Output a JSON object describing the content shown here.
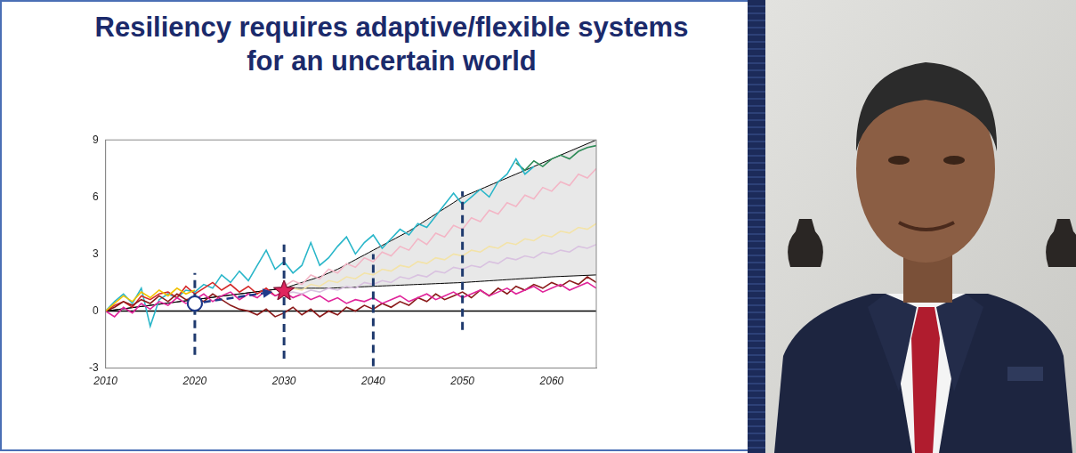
{
  "chart_data": {
    "type": "line",
    "title": "Resiliency requires adaptive/flexible systems for an uncertain world",
    "x": [
      2010,
      2011,
      2012,
      2013,
      2014,
      2015,
      2016,
      2017,
      2018,
      2019,
      2020,
      2021,
      2022,
      2023,
      2024,
      2025,
      2026,
      2027,
      2028,
      2029,
      2030,
      2031,
      2032,
      2033,
      2034,
      2035,
      2036,
      2037,
      2038,
      2039,
      2040,
      2041,
      2042,
      2043,
      2044,
      2045,
      2046,
      2047,
      2048,
      2049,
      2050,
      2051,
      2052,
      2053,
      2054,
      2055,
      2056,
      2057,
      2058,
      2059,
      2060,
      2061,
      2062,
      2063,
      2064,
      2065
    ],
    "xlim": [
      2010,
      2065
    ],
    "xticks": [
      2010,
      2020,
      2030,
      2040,
      2050,
      2060
    ],
    "ylim": [
      -3,
      9
    ],
    "yticks": [
      -3,
      0,
      3,
      6,
      9
    ],
    "grid": false,
    "series": [
      {
        "type": "band",
        "color": "#000000",
        "values": [
          0,
          0.06,
          0.12,
          0.18,
          0.24,
          0.3,
          0.36,
          0.42,
          0.48,
          0.54,
          0.6,
          0.66,
          0.72,
          0.78,
          0.84,
          0.9,
          0.96,
          1.02,
          1.08,
          1.14,
          1.2,
          1.35,
          1.5,
          1.65,
          1.8,
          2.0,
          2.2,
          2.45,
          2.7,
          2.95,
          3.2,
          3.45,
          3.7,
          3.95,
          4.2,
          4.5,
          4.8,
          5.1,
          5.4,
          5.7,
          6.0,
          6.2,
          6.4,
          6.6,
          6.8,
          7.0,
          7.2,
          7.4,
          7.6,
          7.8,
          8.0,
          8.2,
          8.4,
          8.6,
          8.8,
          9.0
        ],
        "lower": [
          0,
          0.06,
          0.12,
          0.18,
          0.24,
          0.3,
          0.36,
          0.42,
          0.48,
          0.54,
          0.6,
          0.66,
          0.72,
          0.78,
          0.84,
          0.9,
          0.96,
          1.02,
          1.08,
          1.14,
          1.2,
          1.2,
          1.2,
          1.2,
          1.2,
          1.2,
          1.22,
          1.24,
          1.26,
          1.28,
          1.3,
          1.32,
          1.34,
          1.36,
          1.38,
          1.4,
          1.42,
          1.44,
          1.46,
          1.48,
          1.5,
          1.53,
          1.56,
          1.59,
          1.62,
          1.65,
          1.68,
          1.71,
          1.74,
          1.77,
          1.8,
          1.82,
          1.84,
          1.86,
          1.88,
          1.9
        ]
      },
      {
        "color": "#f3b6c6",
        "values": [
          null,
          null,
          null,
          null,
          null,
          null,
          null,
          null,
          null,
          null,
          null,
          null,
          null,
          null,
          null,
          null,
          null,
          null,
          null,
          null,
          1.3,
          1.6,
          1.4,
          1.9,
          1.7,
          2.2,
          2.0,
          2.5,
          2.3,
          2.8,
          2.6,
          3.1,
          2.9,
          3.4,
          3.2,
          3.8,
          3.5,
          4.1,
          3.9,
          4.5,
          4.3,
          4.9,
          4.7,
          5.3,
          5.1,
          5.7,
          5.5,
          6.1,
          5.9,
          6.5,
          6.3,
          6.8,
          6.6,
          7.2,
          7.0,
          7.5
        ]
      },
      {
        "color": "#f3e3a8",
        "values": [
          null,
          null,
          null,
          null,
          null,
          null,
          null,
          null,
          null,
          null,
          null,
          null,
          null,
          null,
          null,
          null,
          null,
          null,
          null,
          null,
          1.0,
          1.2,
          1.1,
          1.4,
          1.3,
          1.6,
          1.5,
          1.8,
          1.7,
          2.0,
          1.9,
          2.2,
          2.1,
          2.4,
          2.3,
          2.6,
          2.5,
          2.8,
          2.7,
          3.0,
          2.9,
          3.2,
          3.1,
          3.4,
          3.3,
          3.6,
          3.5,
          3.8,
          3.7,
          4.0,
          3.9,
          4.2,
          4.1,
          4.4,
          4.3,
          4.6
        ]
      },
      {
        "color": "#d9c2e0",
        "values": [
          null,
          null,
          null,
          null,
          null,
          null,
          null,
          null,
          null,
          null,
          null,
          null,
          null,
          null,
          null,
          null,
          null,
          null,
          null,
          null,
          0.9,
          1.0,
          0.9,
          1.1,
          1.0,
          1.2,
          1.1,
          1.3,
          1.2,
          1.5,
          1.4,
          1.6,
          1.5,
          1.8,
          1.7,
          1.9,
          1.8,
          2.1,
          2.0,
          2.3,
          2.2,
          2.4,
          2.3,
          2.6,
          2.5,
          2.8,
          2.7,
          2.9,
          2.8,
          3.1,
          3.0,
          3.2,
          3.1,
          3.4,
          3.3,
          3.5
        ]
      },
      {
        "color": "#f2c200",
        "values": [
          0,
          0.4,
          0.8,
          0.5,
          1.0,
          0.7,
          1.1,
          0.8,
          1.2,
          0.9,
          1.1,
          null,
          null,
          null,
          null,
          null,
          null,
          null,
          null,
          null,
          null,
          null,
          null,
          null,
          null,
          null,
          null,
          null,
          null,
          null,
          null,
          null,
          null,
          null,
          null,
          null,
          null,
          null,
          null,
          null,
          null,
          null,
          null,
          null,
          null,
          null,
          null,
          null,
          null,
          null,
          null,
          null,
          null,
          null,
          null,
          null
        ]
      },
      {
        "color": "#e0249a",
        "values": [
          0,
          -0.3,
          0.2,
          -0.1,
          0.4,
          0.1,
          0.5,
          0.3,
          0.7,
          0.4,
          0.6,
          0.9,
          0.5,
          0.8,
          1.0,
          0.6,
          0.9,
          0.7,
          1.1,
          0.8,
          1.0,
          0.7,
          0.9,
          0.6,
          0.8,
          0.5,
          0.7,
          0.4,
          0.6,
          0.5,
          0.7,
          0.4,
          0.6,
          0.8,
          0.5,
          0.7,
          0.9,
          0.6,
          0.8,
          1.0,
          0.7,
          0.9,
          1.1,
          0.8,
          1.0,
          1.2,
          0.9,
          1.1,
          1.3,
          1.0,
          1.2,
          1.4,
          1.1,
          1.3,
          1.5,
          1.2
        ]
      },
      {
        "color": "#8b1a1a",
        "values": [
          0,
          0.2,
          0.5,
          0.3,
          0.6,
          0.4,
          0.8,
          0.5,
          0.9,
          0.6,
          0.7,
          0.5,
          0.9,
          0.6,
          0.3,
          0.1,
          0.0,
          -0.2,
          0.1,
          -0.3,
          -0.1,
          0.2,
          -0.2,
          0.1,
          -0.3,
          0.0,
          -0.2,
          0.2,
          0.0,
          0.3,
          0.1,
          0.4,
          0.2,
          0.5,
          0.3,
          0.7,
          0.5,
          0.9,
          0.6,
          0.8,
          1.0,
          0.7,
          1.1,
          0.8,
          1.2,
          0.9,
          1.3,
          1.1,
          1.4,
          1.2,
          1.5,
          1.3,
          1.6,
          1.4,
          1.8,
          1.5
        ]
      },
      {
        "color": "#d42a2a",
        "values": [
          0,
          0.3,
          0.5,
          0.2,
          0.8,
          0.6,
          0.9,
          1.0,
          0.7,
          1.3,
          0.9,
          1.2,
          1.5,
          1.1,
          1.4,
          1.0,
          1.3,
          0.9,
          1.2,
          0.8,
          1.0,
          null,
          null,
          null,
          null,
          null,
          null,
          null,
          null,
          null,
          null,
          null,
          null,
          null,
          null,
          null,
          null,
          null,
          null,
          null,
          null,
          null,
          null,
          null,
          null,
          null,
          null,
          null,
          null,
          null,
          null,
          null,
          null,
          null,
          null,
          null
        ]
      },
      {
        "color": "#29b6c9",
        "values": [
          0,
          0.5,
          0.9,
          0.4,
          1.2,
          -0.8,
          0.6,
          0.9,
          0.7,
          1.1,
          1.0,
          1.4,
          1.2,
          1.9,
          1.5,
          2.1,
          1.6,
          2.4,
          3.2,
          2.2,
          2.6,
          2.0,
          2.4,
          3.6,
          2.4,
          2.8,
          3.4,
          3.9,
          3.0,
          3.6,
          4.0,
          3.3,
          3.8,
          4.3,
          4.0,
          4.6,
          4.4,
          5.0,
          5.6,
          6.2,
          5.6,
          6.0,
          6.4,
          6.0,
          6.8,
          7.2,
          8.0,
          7.2,
          7.6,
          null,
          null,
          null,
          null,
          null,
          null,
          null
        ]
      },
      {
        "color": "#2e8b57",
        "values": [
          null,
          null,
          null,
          null,
          null,
          null,
          null,
          null,
          null,
          null,
          null,
          null,
          null,
          null,
          null,
          null,
          null,
          null,
          null,
          null,
          null,
          null,
          null,
          null,
          null,
          null,
          null,
          null,
          null,
          null,
          null,
          null,
          null,
          null,
          null,
          null,
          null,
          null,
          null,
          null,
          null,
          null,
          null,
          null,
          null,
          null,
          7.8,
          7.4,
          7.9,
          7.6,
          8.0,
          8.2,
          8.0,
          8.4,
          8.6,
          8.7
        ]
      },
      {
        "type": "scatter",
        "marker": "circle",
        "color": "#1f3a8a",
        "values": [
          null,
          null,
          null,
          null,
          null,
          null,
          null,
          null,
          null,
          null,
          0.4,
          null,
          null,
          null,
          null,
          null,
          null,
          null,
          null,
          null,
          null,
          null,
          null,
          null,
          null,
          null,
          null,
          null,
          null,
          null,
          null,
          null,
          null,
          null,
          null,
          null,
          null,
          null,
          null,
          null,
          null,
          null,
          null,
          null,
          null,
          null,
          null,
          null,
          null,
          null,
          null,
          null,
          null,
          null,
          null,
          null
        ]
      },
      {
        "type": "scatter",
        "marker": "star",
        "color": "#e0245e",
        "values": [
          null,
          null,
          null,
          null,
          null,
          null,
          null,
          null,
          null,
          null,
          null,
          null,
          null,
          null,
          null,
          null,
          null,
          null,
          null,
          null,
          1.1,
          null,
          null,
          null,
          null,
          null,
          null,
          null,
          null,
          null,
          null,
          null,
          null,
          null,
          null,
          null,
          null,
          null,
          null,
          null,
          null,
          null,
          null,
          null,
          null,
          null,
          null,
          null,
          null,
          null,
          null,
          null,
          null,
          null,
          null,
          null
        ]
      }
    ],
    "arrow": {
      "from": [
        2020,
        0.4
      ],
      "to": [
        2030,
        1.1
      ],
      "color": "#1f3a8a",
      "line_style": "dashed"
    },
    "vlines": [
      {
        "x": 2020,
        "y": [
          -2.3,
          2.0
        ]
      },
      {
        "x": 2030,
        "y": [
          -2.5,
          3.5
        ]
      },
      {
        "x": 2040,
        "y": [
          -2.9,
          3.0
        ]
      },
      {
        "x": 2050,
        "y": [
          -1.0,
          6.3
        ]
      }
    ]
  }
}
